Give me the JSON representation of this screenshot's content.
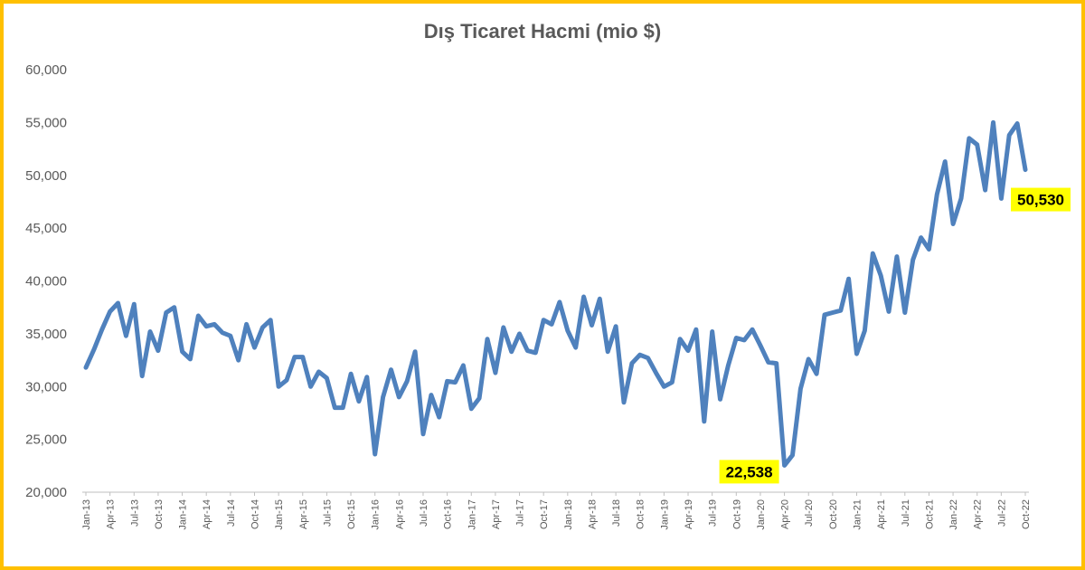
{
  "chart_data": {
    "type": "line",
    "title": "Dış Ticaret Hacmi (mio $)",
    "xlabel": "",
    "ylabel": "",
    "ylim": [
      20000,
      60000
    ],
    "yticks": [
      "20,000",
      "25,000",
      "30,000",
      "35,000",
      "40,000",
      "45,000",
      "50,000",
      "55,000",
      "60,000"
    ],
    "grid": false,
    "line_color": "#4f81bd",
    "frame_color": "#ffc000",
    "callout_color": "#ffff00",
    "x_labels": [
      "Jan-13",
      "Apr-13",
      "Jul-13",
      "Oct-13",
      "Jan-14",
      "Apr-14",
      "Jul-14",
      "Oct-14",
      "Jan-15",
      "Apr-15",
      "Jul-15",
      "Oct-15",
      "Jan-16",
      "Apr-16",
      "Jul-16",
      "Oct-16",
      "Jan-17",
      "Apr-17",
      "Jul-17",
      "Oct-17",
      "Jan-18",
      "Apr-18",
      "Jul-18",
      "Oct-18",
      "Jan-19",
      "Apr-19",
      "Jul-19",
      "Oct-19",
      "Jan-20",
      "Apr-20",
      "Jul-20",
      "Oct-20",
      "Jan-21",
      "Apr-21",
      "Jul-21",
      "Oct-21",
      "Jan-22",
      "Apr-22",
      "Jul-22",
      "Oct-22"
    ],
    "values": [
      31800,
      33500,
      35400,
      37100,
      37900,
      34800,
      37800,
      31000,
      35200,
      33400,
      37000,
      37500,
      33300,
      32600,
      36700,
      35700,
      35900,
      35100,
      34800,
      32500,
      35900,
      33700,
      35600,
      36300,
      30000,
      30600,
      32800,
      32800,
      30000,
      31400,
      30800,
      28000,
      28000,
      31200,
      28600,
      30900,
      23600,
      29000,
      31600,
      29000,
      30500,
      33300,
      25500,
      29200,
      27100,
      30500,
      30400,
      32000,
      27900,
      28900,
      34500,
      31300,
      35600,
      33300,
      35000,
      33400,
      33200,
      36300,
      35900,
      38000,
      35300,
      33700,
      38500,
      35800,
      38300,
      33300,
      35700,
      28500,
      32200,
      33000,
      32700,
      31300,
      30000,
      30400,
      34500,
      33400,
      35400,
      26700,
      35200,
      28800,
      32000,
      34600,
      34400,
      35400,
      33900,
      32300,
      32200,
      22538,
      23500,
      29800,
      32600,
      31200,
      36800,
      37000,
      37200,
      40200,
      33100,
      35300,
      42600,
      40500,
      37100,
      42300,
      37000,
      42000,
      44100,
      43000,
      48200,
      51300,
      45400,
      47800,
      53500,
      52900,
      48600,
      55000,
      47800,
      53800,
      54900,
      50530
    ],
    "callouts": [
      {
        "label": "22,538",
        "index": 87
      },
      {
        "label": "50,530",
        "index": 117
      }
    ]
  }
}
